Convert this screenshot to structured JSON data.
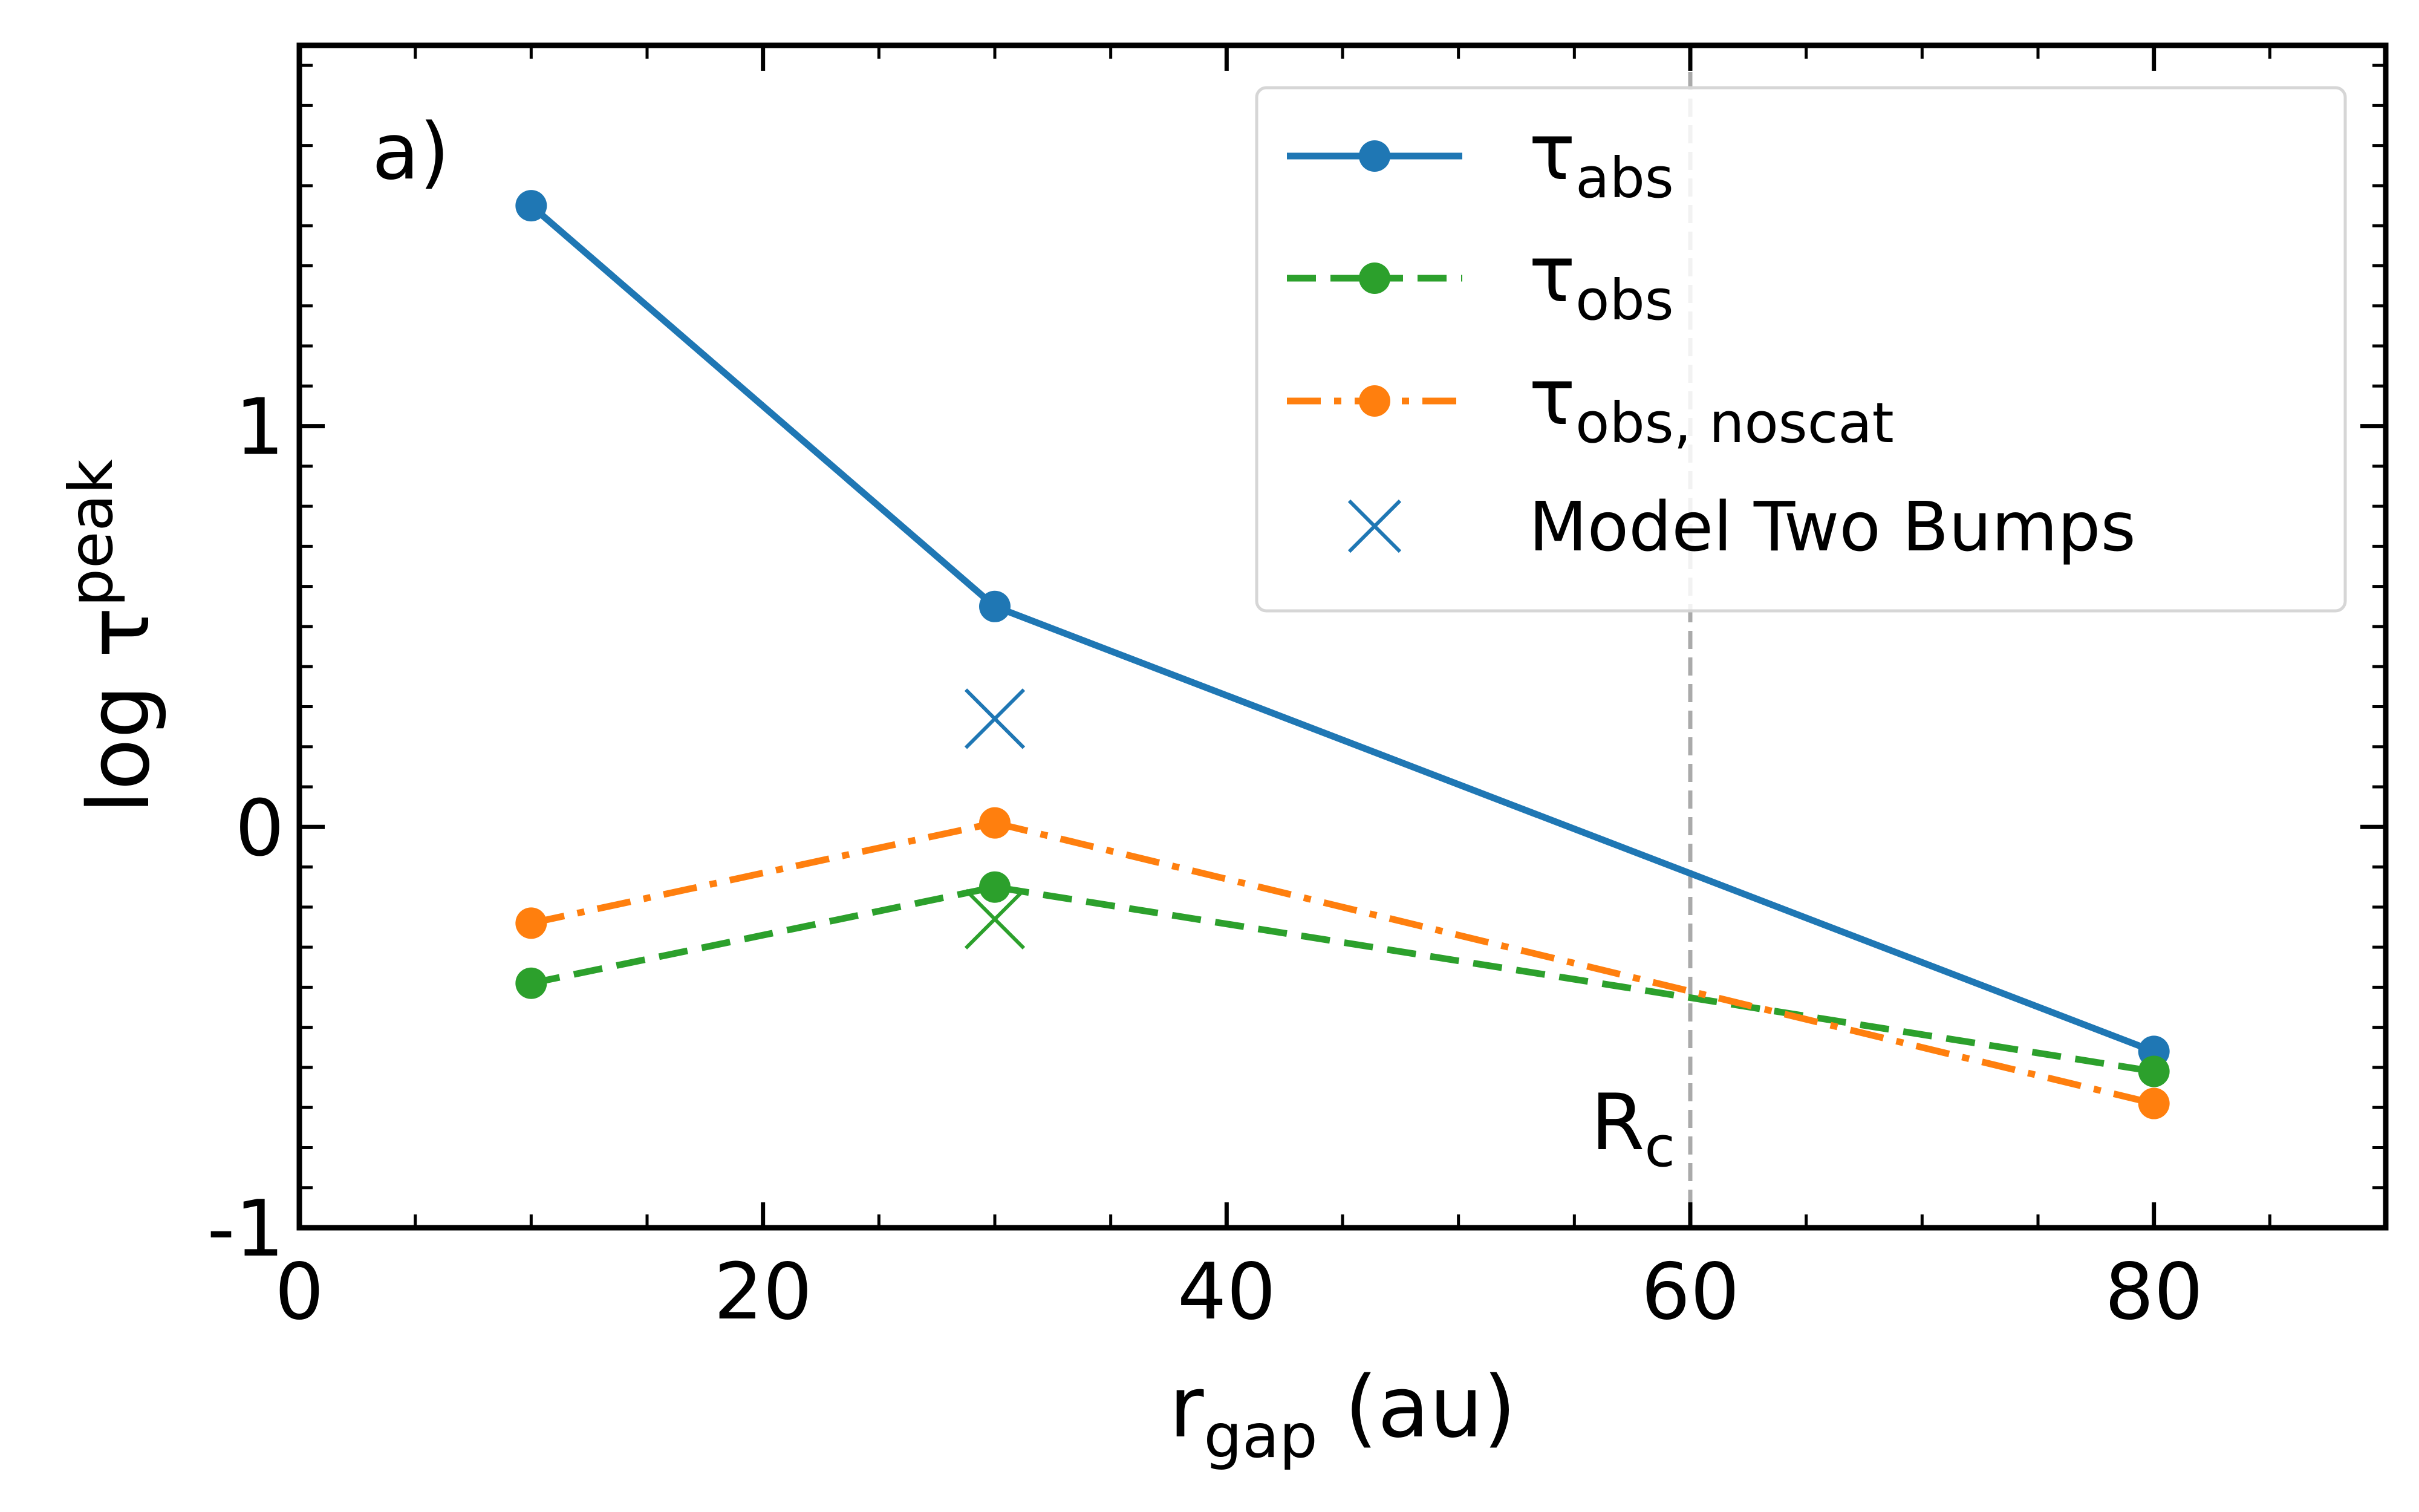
{
  "chart_data": {
    "type": "line",
    "panel_label": "a)",
    "xlabel": {
      "base": "r",
      "sub": "gap",
      "rest": " (au)"
    },
    "ylabel": {
      "base": "log τ",
      "sup": "peak"
    },
    "xlim": [
      0,
      90
    ],
    "ylim": [
      -1,
      1.95
    ],
    "x_ticks": [
      0,
      20,
      40,
      60,
      80
    ],
    "x_tick_labels": [
      "0",
      "20",
      "40",
      "60",
      "80"
    ],
    "y_ticks": [
      -1,
      0,
      1
    ],
    "y_tick_labels": [
      "-1",
      "0",
      "1"
    ],
    "grid": false,
    "legend_position": "top-right",
    "series": [
      {
        "key": "tau_abs",
        "label_base": "τ",
        "label_sub": "abs",
        "color": "#1f77b4",
        "dash": "solid",
        "x": [
          10,
          30,
          80
        ],
        "y": [
          1.55,
          0.55,
          -0.56
        ]
      },
      {
        "key": "tau_obs",
        "label_base": "τ",
        "label_sub": "obs",
        "color": "#2ca02c",
        "dash": "dashed",
        "x": [
          10,
          30,
          80
        ],
        "y": [
          -0.39,
          -0.15,
          -0.61
        ]
      },
      {
        "key": "tau_obs_noscat",
        "label_base": "τ",
        "label_sub": "obs, noscat",
        "color": "#ff7f0e",
        "dash": "dashdot",
        "x": [
          10,
          30,
          80
        ],
        "y": [
          -0.24,
          0.01,
          -0.69
        ]
      }
    ],
    "markers": [
      {
        "key": "two_bumps_abs",
        "x": 30,
        "y": 0.27,
        "color": "#1f77b4",
        "symbol": "x"
      },
      {
        "key": "two_bumps_obs",
        "x": 30,
        "y": -0.23,
        "color": "#2ca02c",
        "symbol": "x"
      }
    ],
    "marker_legend": {
      "label": "Model Two Bumps",
      "color": "#1f77b4"
    },
    "vline": {
      "x": 60,
      "label": "R",
      "label_sub": "c",
      "color": "#aaaaaa"
    }
  }
}
